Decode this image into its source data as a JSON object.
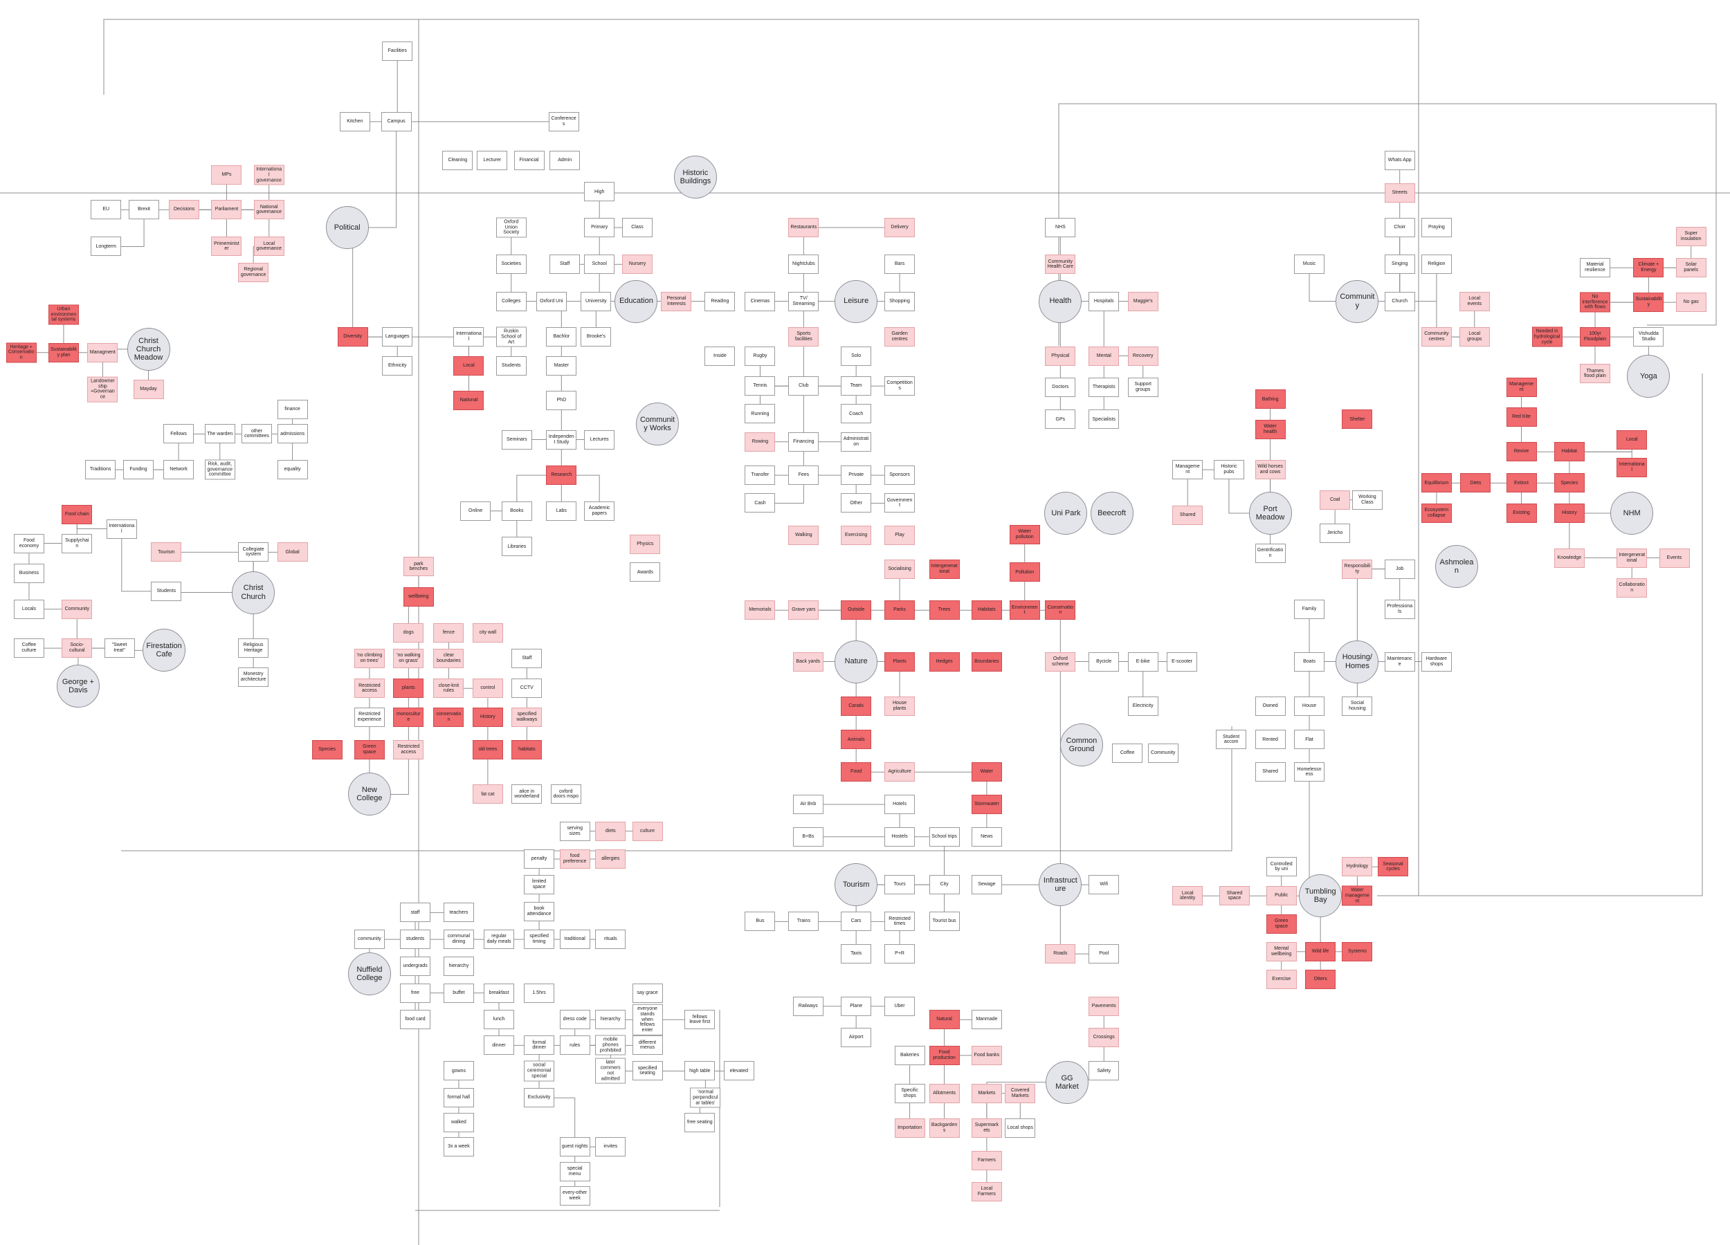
{
  "nodes": [
    "Facilities",
    "Kitchen",
    "Campus",
    "Conferences",
    "Cleaning",
    "Lecturer",
    "Financial",
    "Admin",
    "Historic Buildings",
    "Whats App",
    "MPs",
    "International governance",
    "EU",
    "Brexit",
    "Decisions",
    "Parliament",
    "National governance",
    "Political",
    "High",
    "Streets",
    "Longterm",
    "Primeminister",
    "Local governance",
    "Regional governance",
    "Oxford Union Society",
    "Primary",
    "Class",
    "Restaurants",
    "Delivery",
    "NHS",
    "Choir",
    "Praying",
    "Super insulation",
    "Societies",
    "Staff",
    "School",
    "Nursery",
    "Nightclubs",
    "Bars",
    "Community Health Care",
    "Music",
    "Singing",
    "Religion",
    "Material resilience",
    "Climate + Energy",
    "Solar panels",
    "Urban environmental systems",
    "Colleges",
    "Oxford Uni",
    "University",
    "Education",
    "Personal Interests",
    "Reading",
    "Cinemas",
    "TV/ Streaming",
    "Leisure",
    "Shopping",
    "Health",
    "Hospitals",
    "Maggie's",
    "Community",
    "Church",
    "Local events",
    "No interference with flows",
    "Sustainability",
    "No gas",
    "Heritage + Conservation",
    "Sustainability plan",
    "Managment",
    "Christ Church Meadow",
    "Diversity",
    "Languages",
    "International",
    "Ruskin School of Art",
    "Bachlor",
    "Brooke's",
    "Sports facilities",
    "Garden centres",
    "Community centres",
    "Local groups",
    "Needed in hydrological cycle",
    "100yr Floodplain",
    "Vishudda Studio",
    "Ethnicity",
    "Local",
    "Students",
    "Master",
    "Inside",
    "Rugby",
    "Solo",
    "Physical",
    "Mental",
    "Recovery",
    "Landownership +Governance",
    "Mayday",
    "Thames flood plain",
    "Yoga",
    "Management",
    "National",
    "PhD",
    "Community Works",
    "Tennis",
    "Club",
    "Team",
    "Competitions",
    "Doctors",
    "Therapists",
    "Support groups",
    "finance",
    "Bathing",
    "Fellows",
    "The warden",
    "other committees",
    "admissions",
    "Running",
    "Coach",
    "GPs",
    "Specialists",
    "Shelter",
    "Red Kite",
    "Seminars",
    "Independent Study",
    "Lectures",
    "Rowing",
    "Financing",
    "Administration",
    "Water health",
    "Revive",
    "Habitat",
    "Local",
    "Traditions",
    "Funding",
    "Network",
    "Risk, audit, governance committee",
    "equality",
    "Research",
    "Transfer",
    "Fees",
    "Private",
    "Sponsors",
    "Management",
    "Historic pubs",
    "Wild horses and cows",
    "International",
    "Equilibrium",
    "Diets",
    "Extinct",
    "Species",
    "Coal",
    "Working Class",
    "Online",
    "Books",
    "Labs",
    "Academic papers",
    "Cash",
    "Other",
    "Government",
    "Uni Park",
    "Beecroft",
    "Port Meadow",
    "NHM",
    "Shared",
    "Ecosystem collapse",
    "Existing",
    "History",
    "Food chain",
    "Food economy",
    "Supplychain",
    "International",
    "Jericho",
    "Walking",
    "Exercising",
    "Play",
    "Water pollution",
    "Libraries",
    "Physics",
    "Tourism",
    "Collegiate system",
    "Global",
    "Gentrification",
    "Ashmolean",
    "Knowledge",
    "Intergenerational",
    "Events",
    "Business",
    "park benches",
    "Awards",
    "Socialising",
    "Intergenerational",
    "Pollution",
    "Responsibility",
    "Job",
    "Students",
    "Christ Church",
    "wellbeing",
    "Collaboration",
    "Locals",
    "Community",
    "Memorials",
    "Grave yars",
    "Outside",
    "Parks",
    "Trees",
    "Habitats",
    "Environment",
    "Conservation",
    "Family",
    "Professionals",
    "dogs",
    "fence",
    "city wall",
    "Coffee culture",
    "Socio-cultural",
    "\"Sweet treat\"",
    "Firestation Cafe",
    "Religious Heritage",
    "'no climbing on trees'",
    "'no walking on grass'",
    "clear boundaries",
    "Staff",
    "Back yards",
    "Nature",
    "Plants",
    "Hedges",
    "Boundaries",
    "Oxford scheme",
    "Bycicle",
    "E-bike",
    "E-scooter",
    "Boats",
    "Housing/ Homes",
    "Maintenance",
    "Hardware shops",
    "George + Davis",
    "Monestry architecture",
    "Restricted access",
    "plants",
    "close-knit rules",
    "control",
    "CCTV",
    "Canals",
    "House plants",
    "Electricity",
    "Owned",
    "House",
    "Social housing",
    "Restricted experience",
    "monoculture",
    "conservation",
    "History",
    "specified walkways",
    "Animals",
    "Common Ground",
    "Student accom",
    "Rented",
    "Flat",
    "Species",
    "Green space",
    "Restricted access",
    "old trees",
    "habitats",
    "Coffee",
    "Community",
    "Food",
    "Agriculture",
    "Water",
    "Shared",
    "Homelessness",
    "New College",
    "fat cat",
    "alice in wonderland",
    "oxford doors mspo",
    "Air Bnb",
    "Hotels",
    "Stormwater",
    "B+Bs",
    "Hostels",
    "School trips",
    "News",
    "serving sizes",
    "diets",
    "culture",
    "penalty",
    "food preference",
    "allergies",
    "Controlled by uni",
    "Hydrology",
    "Seasonal cycles",
    "limited space",
    "Tourism",
    "Tours",
    "City",
    "Sewage",
    "Infrastructure",
    "Wifi",
    "Tumbling Bay",
    "Local identity",
    "Shared space",
    "Public",
    "Water management",
    "book attendance",
    "staff",
    "teachers",
    "Bus",
    "Trains",
    "Cars",
    "Restricted times",
    "Tourist bus",
    "Green space",
    "community",
    "students",
    "communal dining",
    "regular daily meals",
    "specified timing",
    "traditional",
    "rituals",
    "Taxis",
    "P+R",
    "Roads",
    "Pool",
    "Mental wellbeing",
    "Wild life",
    "Systems",
    "hierarchy",
    "Nuffield College",
    "undergrads",
    "Exercise",
    "Otters",
    "free",
    "buffet",
    "breakfast",
    "1.5hrs",
    "say grace",
    "Railways",
    "Plane",
    "Uber",
    "Pavements",
    "food card",
    "lunch",
    "dress code",
    "hierarchy",
    "everyone stands when fellows enter",
    "fellows leave first",
    "Natural",
    "Manmade",
    "mobile phones prohibited",
    "different menus",
    "dinner",
    "formal dinner",
    "rules",
    "Airport",
    "Crossings",
    "Bakeries",
    "Food production",
    "Food banks",
    "gowns",
    "social ceremonial special",
    "later commers not admitted",
    "specified seating",
    "high table",
    "elevated",
    "Safety",
    "GG Market",
    "Specific shops",
    "Allotments",
    "Markets",
    "Covered Markets",
    "formal hall",
    "Exclusivity",
    "'normal perpendicular tables'",
    "walked",
    "free seating",
    "Supermarkets",
    "Local shops",
    "Importation",
    "Backgardens",
    "3x a week",
    "guest nights",
    "invites",
    "Farmers",
    "special menu",
    "Local Farmers",
    "every-other week"
  ]
}
